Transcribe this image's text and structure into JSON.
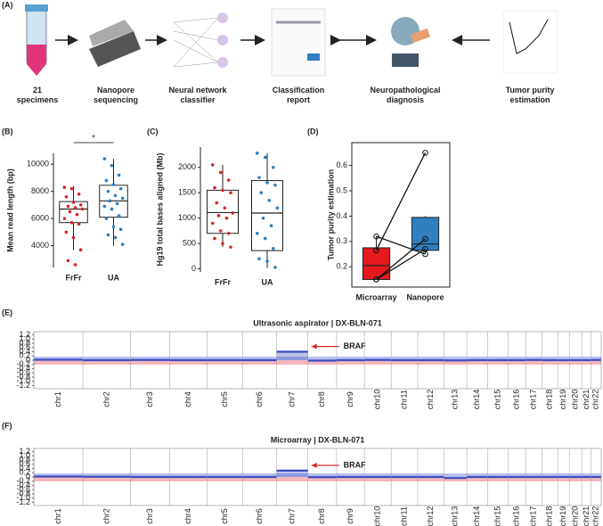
{
  "panel_labels": [
    "(A)",
    "(B)",
    "(C)",
    "(D)",
    "(E)",
    "(F)"
  ],
  "workflow": {
    "steps": [
      "21 specimens",
      "Nanopore sequencing",
      "Neural network classifier",
      "Classification report",
      "Neuropathological diagnosis",
      "Tumor purity estimation"
    ]
  },
  "chart_data": [
    {
      "type": "box",
      "ylabel": "Mean read length (bp)",
      "categories": [
        "FrFr",
        "UA"
      ],
      "colors": [
        "#d62728",
        "#2f7fc1"
      ],
      "boxes": [
        {
          "whisker_low": 3700,
          "q1": 5700,
          "median": 6700,
          "q3": 7250,
          "whisker_high": 8400
        },
        {
          "whisker_low": 4000,
          "q1": 6100,
          "median": 7300,
          "q3": 8450,
          "whisker_high": 10400
        }
      ],
      "points": [
        [
          8300,
          8200,
          7800,
          7600,
          7200,
          7000,
          6900,
          6800,
          6700,
          6500,
          6300,
          6000,
          5700,
          5600,
          5000,
          4600,
          3700,
          2900,
          2600
        ],
        [
          10400,
          9900,
          9200,
          8800,
          8500,
          8200,
          8000,
          7700,
          7500,
          7300,
          7100,
          6900,
          6700,
          6200,
          6000,
          5400,
          5200,
          4800,
          4600,
          4100
        ]
      ],
      "ylim": [
        2400,
        10800
      ],
      "yticks": [
        4000,
        6000,
        8000,
        10000
      ],
      "annotation": "*"
    },
    {
      "type": "box",
      "ylabel": "Hg19 total bases aligned (Mb)",
      "categories": [
        "FrFr",
        "UA"
      ],
      "colors": [
        "#d62728",
        "#2f7fc1"
      ],
      "boxes": [
        {
          "whisker_low": 430,
          "q1": 700,
          "median": 1110,
          "q3": 1550,
          "whisker_high": 2050
        },
        {
          "whisker_low": 20,
          "q1": 360,
          "median": 1100,
          "q3": 1740,
          "whisker_high": 2280
        }
      ],
      "points": [
        [
          2050,
          1900,
          1750,
          1600,
          1550,
          1500,
          1300,
          1200,
          1100,
          1050,
          1000,
          900,
          750,
          700,
          600,
          500,
          430
        ],
        [
          2280,
          2200,
          2000,
          1800,
          1700,
          1650,
          1500,
          1350,
          1200,
          1000,
          850,
          700,
          600,
          400,
          200,
          150,
          30
        ]
      ],
      "ylim": [
        -60,
        2400
      ],
      "yticks": [
        0,
        500,
        1000,
        1500,
        2000
      ]
    },
    {
      "type": "box",
      "ylabel": "Tumor purity estimation",
      "categories": [
        "Microarray",
        "Nanopore"
      ],
      "colors": [
        "#e41a1c",
        "#2f7fc1"
      ],
      "boxes": [
        {
          "whisker_low": 0.15,
          "q1": 0.15,
          "median": 0.205,
          "q3": 0.275,
          "whisker_high": 0.32
        },
        {
          "whisker_low": 0.25,
          "q1": 0.265,
          "median": 0.29,
          "q3": 0.395,
          "whisker_high": 0.4
        }
      ],
      "points": [
        [
          0.32,
          0.265,
          0.15,
          0.15
        ],
        [
          0.25,
          0.65,
          0.31,
          0.27
        ]
      ],
      "paired": true,
      "border": true,
      "ylim": [
        0.12,
        0.69
      ],
      "yticks": [
        0.2,
        0.3,
        0.4,
        0.5,
        0.6
      ]
    },
    {
      "type": "cnv",
      "title": "Ultrasonic aspirator  | DX-BLN-071",
      "categories": [
        "chr1",
        "chr2",
        "chr3",
        "chr4",
        "chr5",
        "chr6",
        "chr7",
        "chr8",
        "chr9",
        "chr10",
        "chr11",
        "chr12",
        "chr13",
        "chr14",
        "chr15",
        "chr16",
        "chr17",
        "chr18",
        "chr19",
        "chr20",
        "chr21",
        "chr22"
      ],
      "values": [
        0.02,
        0.0,
        0.01,
        0.0,
        0.0,
        0.0,
        0.4,
        -0.02,
        0.0,
        0.01,
        0.0,
        0.0,
        -0.01,
        0.0,
        0.0,
        0.0,
        0.01,
        0.0,
        0.0,
        0.0,
        0.0,
        0.01
      ],
      "ylim": [
        -1.35,
        1.35
      ],
      "yticks": [
        {
          "value": 1.2,
          "label": "1.2"
        },
        {
          "value": 1,
          "label": "1.0"
        },
        0.8,
        0.6,
        0.4,
        0.2,
        0,
        -0.2,
        -0.4,
        -0.6,
        -0.8,
        {
          "value": -1,
          "label": "-1.0"
        },
        -1.2
      ],
      "annotation": "BRAF",
      "color": "#3b4cc0"
    },
    {
      "type": "cnv",
      "title": "Microarray | DX-BLN-071",
      "categories": [
        "chr1",
        "chr2",
        "chr3",
        "chr4",
        "chr5",
        "chr6",
        "chr7",
        "chr8",
        "chr9",
        "chr10",
        "chr11",
        "chr12",
        "chr13",
        "chr14",
        "chr15",
        "chr16",
        "chr17",
        "chr18",
        "chr19",
        "chr20",
        "chr21",
        "chr22"
      ],
      "values": [
        0.02,
        0.01,
        0.0,
        0.0,
        0.0,
        0.0,
        0.3,
        -0.01,
        0.0,
        0.0,
        0.0,
        0.0,
        -0.05,
        0.0,
        0.0,
        0.0,
        0.0,
        0.0,
        0.0,
        0.0,
        0.0,
        0.0
      ],
      "ylim": [
        -1.35,
        1.35
      ],
      "yticks": [
        {
          "value": 1.2,
          "label": "1.2"
        },
        {
          "value": 1,
          "label": "1.0"
        },
        0.8,
        0.6,
        0.4,
        0.2,
        0,
        -0.2,
        -0.4,
        -0.6,
        -0.8,
        {
          "value": -1,
          "label": "-1.0"
        },
        -1.2
      ],
      "annotation": "BRAF",
      "color": "#3b4cc0"
    }
  ]
}
